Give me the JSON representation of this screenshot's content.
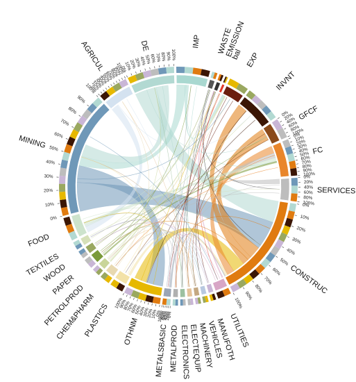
{
  "diagram": {
    "type": "chord",
    "sectors": [
      {
        "name": "IMP",
        "color": "#a9d8d0",
        "share": 0.05
      },
      {
        "name": "WASTE",
        "color": "#555555",
        "share": 0.008
      },
      {
        "name": "EMISSION",
        "color": "#333333",
        "share": 0.006
      },
      {
        "name": "bal",
        "color": "#e23a2a",
        "share": 0.004
      },
      {
        "name": "EXP",
        "color": "#6b1f0f",
        "share": 0.03
      },
      {
        "name": "INVNT",
        "color": "#3b1605",
        "share": 0.055
      },
      {
        "name": "GFCF",
        "color": "#8a4a1a",
        "share": 0.03
      },
      {
        "name": "FC",
        "color": "#e9862b",
        "share": 0.055
      },
      {
        "name": "SERVICES",
        "color": "#bdbdbd",
        "share": 0.035
      },
      {
        "name": "CONSTRUC",
        "color": "#e07b10",
        "share": 0.165
      },
      {
        "name": "UTILITIES",
        "color": "#d8a6c6",
        "share": 0.02
      },
      {
        "name": "MANUFOTH",
        "color": "#c9b6d6",
        "share": 0.008
      },
      {
        "name": "VEHICLES",
        "color": "#b8c8e0",
        "share": 0.008
      },
      {
        "name": "MACHINERY",
        "color": "#c4a882",
        "share": 0.008
      },
      {
        "name": "ELECTEQUIP",
        "color": "#e5c39a",
        "share": 0.008
      },
      {
        "name": "ELECTRONICS",
        "color": "#9cc0a0",
        "share": 0.008
      },
      {
        "name": "METALPROD",
        "color": "#b0b0b0",
        "share": 0.008
      },
      {
        "name": "METALSBASIC",
        "color": "#9aa5b5",
        "share": 0.012
      },
      {
        "name": "OTHNM",
        "color": "#e6b800",
        "share": 0.055
      },
      {
        "name": "PLASTICS",
        "color": "#f3e2a8",
        "share": 0.02
      },
      {
        "name": "CHEM&PHARM",
        "color": "#e8d9b0",
        "share": 0.015
      },
      {
        "name": "PETROLPROD",
        "color": "#c9d59a",
        "share": 0.012
      },
      {
        "name": "PAPER",
        "color": "#7a9a3a",
        "share": 0.015
      },
      {
        "name": "WOOD",
        "color": "#9aa860",
        "share": 0.012
      },
      {
        "name": "TEXTILES",
        "color": "#d6e0b8",
        "share": 0.012
      },
      {
        "name": "FOOD",
        "color": "#cde3cc",
        "share": 0.035
      },
      {
        "name": "MINING",
        "color": "#6f98b8",
        "share": 0.19
      },
      {
        "name": "AGRICUL",
        "color": "#d4e2f0",
        "share": 0.045
      },
      {
        "name": "DE",
        "color": "#b2d9d2",
        "share": 0.07
      }
    ],
    "tick_labels": [
      "0%",
      "10%",
      "20%",
      "30%",
      "40%",
      "50%",
      "60%",
      "70%",
      "80%",
      "90%",
      "100%"
    ],
    "ticked_sectors": [
      "MINING",
      "CONSTRUC",
      "OTHNM",
      "DE",
      "AGRICUL",
      "GFCF",
      "FC",
      "SERVICES",
      "METALSBASIC"
    ],
    "flows": [
      {
        "from": "DE",
        "to": "CONSTRUC",
        "value": 0.09
      },
      {
        "from": "MINING",
        "to": "CONSTRUC",
        "value": 0.12
      },
      {
        "from": "MINING",
        "to": "OTHNM",
        "value": 0.07
      },
      {
        "from": "AGRICUL",
        "to": "FOOD",
        "value": 0.03
      },
      {
        "from": "IMP",
        "to": "MINING",
        "value": 0.04
      },
      {
        "from": "CONSTRUC",
        "to": "GFCF",
        "value": 0.05
      },
      {
        "from": "CONSTRUC",
        "to": "INVNT",
        "value": 0.04
      },
      {
        "from": "OTHNM",
        "to": "CONSTRUC",
        "value": 0.05
      },
      {
        "from": "FC",
        "to": "CONSTRUC",
        "value": 0.03
      },
      {
        "from": "DE",
        "to": "MINING",
        "value": 0.05
      },
      {
        "from": "SERVICES",
        "to": "FC",
        "value": 0.02
      },
      {
        "from": "FOOD",
        "to": "FC",
        "value": 0.015
      },
      {
        "from": "PLASTICS",
        "to": "CONSTRUC",
        "value": 0.01
      },
      {
        "from": "METALSBASIC",
        "to": "CONSTRUC",
        "value": 0.008
      },
      {
        "from": "IMP",
        "to": "EXP",
        "value": 0.01
      },
      {
        "from": "UTILITIES",
        "to": "EMISSION",
        "value": 0.005
      },
      {
        "from": "PAPER",
        "to": "FC",
        "value": 0.006
      },
      {
        "from": "PETROLPROD",
        "to": "EXP",
        "value": 0.005
      }
    ]
  }
}
